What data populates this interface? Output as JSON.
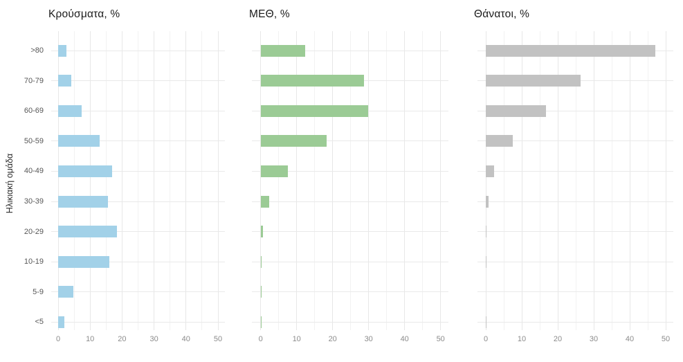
{
  "figure": {
    "background_color": "#ffffff"
  },
  "chart_data": {
    "type": "bar",
    "orientation": "horizontal",
    "ylabel": "Ηλικιακή ομάδα",
    "categories_top_to_bottom": [
      ">80",
      "70-79",
      "60-69",
      "50-59",
      "40-49",
      "30-39",
      "20-29",
      "10-19",
      "5-9",
      "<5"
    ],
    "xlim": [
      0,
      50
    ],
    "x_ticks": [
      0,
      10,
      20,
      30,
      40,
      50
    ],
    "x_minor_ticks": [
      5,
      15,
      25,
      35,
      45
    ],
    "grid": "on",
    "legend": "none",
    "panels": [
      {
        "title": "Κρούσματα, %",
        "bar_color": "#a2d1e8",
        "values": [
          2.7,
          4.1,
          7.4,
          13.0,
          16.8,
          15.6,
          18.3,
          16.1,
          4.7,
          1.9
        ]
      },
      {
        "title": "ΜΕΘ, %",
        "bar_color": "#9bcb95",
        "values": [
          12.3,
          28.7,
          29.8,
          18.3,
          7.6,
          2.4,
          0.6,
          0.3,
          0.1,
          0.2
        ]
      },
      {
        "title": "Θάνατοι, %",
        "bar_color": "#c2c2c2",
        "values": [
          47.1,
          26.3,
          16.7,
          7.5,
          2.4,
          0.7,
          0.2,
          0.2,
          0.0,
          0.1
        ]
      }
    ]
  },
  "colors": {
    "major_gridline": "#e7e7e7",
    "minor_gridline": "#f2f2f2",
    "row_gridline": "#e9e9e9",
    "title_text": "#1b1b1b",
    "tick_text": "#8b8b8b",
    "category_text": "#565656"
  }
}
